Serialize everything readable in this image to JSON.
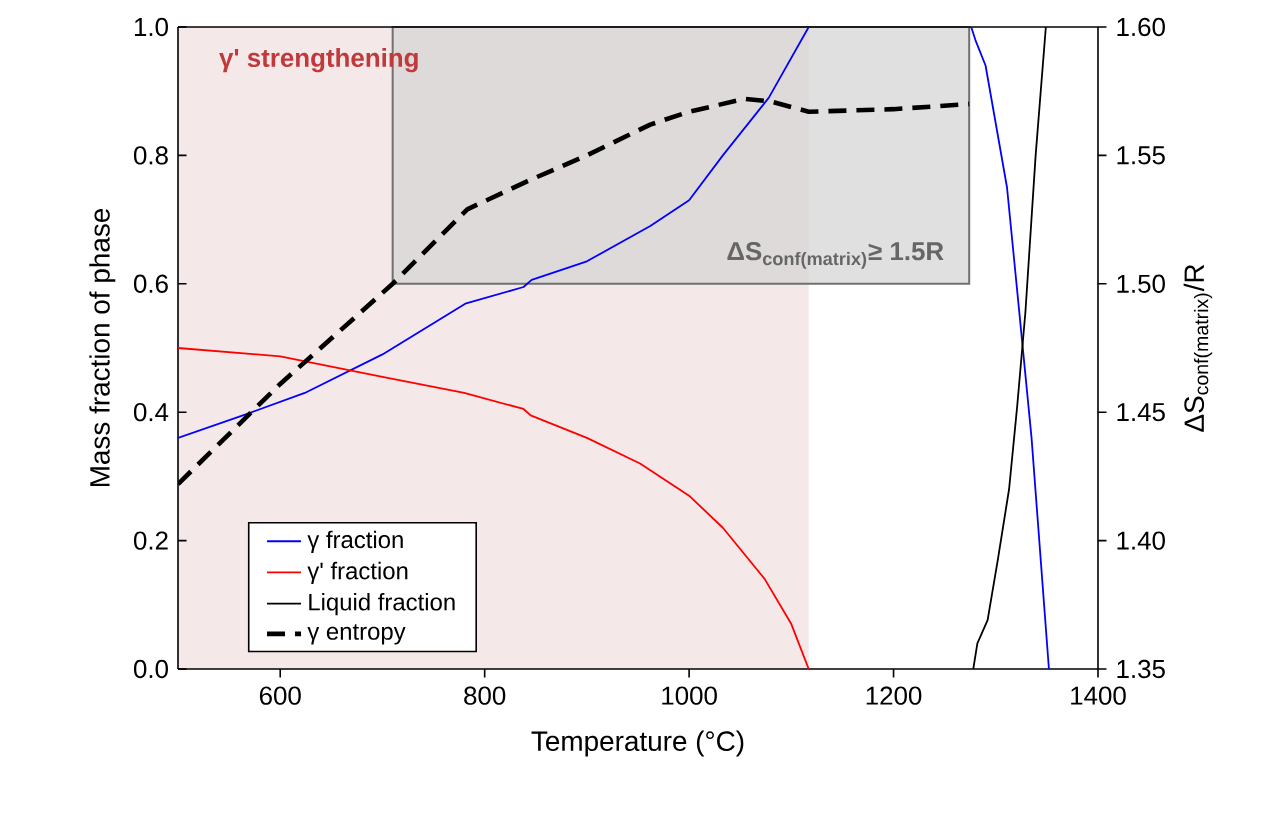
{
  "chart_data": {
    "type": "line",
    "xlabel": "Temperature (°C)",
    "ylabel": "Mass fraction of phase",
    "y2label": "\\text{ΔS}_{\\text{conf(matrix)}}\\text{/R}",
    "xlim": [
      500,
      1400
    ],
    "xticks": [
      600,
      800,
      1000,
      1200,
      1400
    ],
    "ylim": [
      0,
      1
    ],
    "yticks": [
      {
        "value": 0,
        "label": "0.0"
      },
      {
        "value": 0.2,
        "label": "0.2"
      },
      {
        "value": 0.4,
        "label": "0.4"
      },
      {
        "value": 0.6,
        "label": "0.6"
      },
      {
        "value": 0.8,
        "label": "0.8"
      },
      {
        "value": 1,
        "label": "1.0"
      }
    ],
    "y2lim": [
      1.35,
      1.6
    ],
    "y2ticks": [
      1.35,
      {
        "value": 1.4,
        "label": "1.40"
      },
      1.45,
      {
        "value": 1.5,
        "label": "1.50"
      },
      1.55,
      {
        "value": 1.6,
        "label": "1.60"
      }
    ],
    "legend": "bottom left",
    "bands": [
      {
        "axis": "x",
        "from": 500,
        "to": 1117,
        "label": "γ' strengthening",
        "color": "#f5e8e8"
      },
      {
        "axis": "y2",
        "from": 1.5,
        "to": 1.6,
        "label": "\\textbf{ΔS}_{\\textbf{conf(matrix)}}\\textbf{≥ 1.5R}",
        "color": "#d6d6d6"
      }
    ],
    "series": [
      {
        "name": "γ fraction",
        "color": "#0000ff",
        "x": [
          500,
          567,
          624,
          700,
          781,
          838,
          846,
          900,
          962,
          1000,
          1033,
          1078,
          1117,
          1276,
          1280,
          1290,
          1311,
          1323,
          1335,
          1352
        ],
        "values": [
          0.36,
          0.397,
          0.43,
          0.49,
          0.569,
          0.595,
          0.606,
          0.635,
          0.69,
          0.73,
          0.8,
          0.89,
          1.0,
          1.0,
          0.98,
          0.94,
          0.75,
          0.556,
          0.36,
          0.0
        ]
      },
      {
        "name": "γ' fraction",
        "color": "#ff0000",
        "x": [
          500,
          600,
          700,
          780,
          838,
          845,
          900,
          952,
          1000,
          1033,
          1074,
          1100,
          1117
        ],
        "values": [
          0.5,
          0.487,
          0.455,
          0.43,
          0.405,
          0.395,
          0.36,
          0.32,
          0.27,
          0.22,
          0.14,
          0.07,
          0.0
        ]
      },
      {
        "name": "Liquid fraction",
        "color": "#000000",
        "x": [
          1278,
          1282,
          1292,
          1302,
          1313,
          1321,
          1329,
          1339,
          1349
        ],
        "values": [
          0.0,
          0.04,
          0.076,
          0.17,
          0.28,
          0.41,
          0.556,
          0.8,
          1.0
        ]
      },
      {
        "name": "γ entropy",
        "color": "#000000",
        "axis": "y2",
        "line_style": "dashed",
        "x": [
          500,
          600,
          710,
          783,
          842,
          900,
          962,
          1000,
          1054,
          1080,
          1117,
          1200,
          1274
        ],
        "values": [
          1.422,
          1.461,
          1.5,
          1.529,
          1.54,
          1.55,
          1.562,
          1.567,
          1.572,
          1.571,
          1.567,
          1.568,
          1.57
        ]
      }
    ]
  }
}
